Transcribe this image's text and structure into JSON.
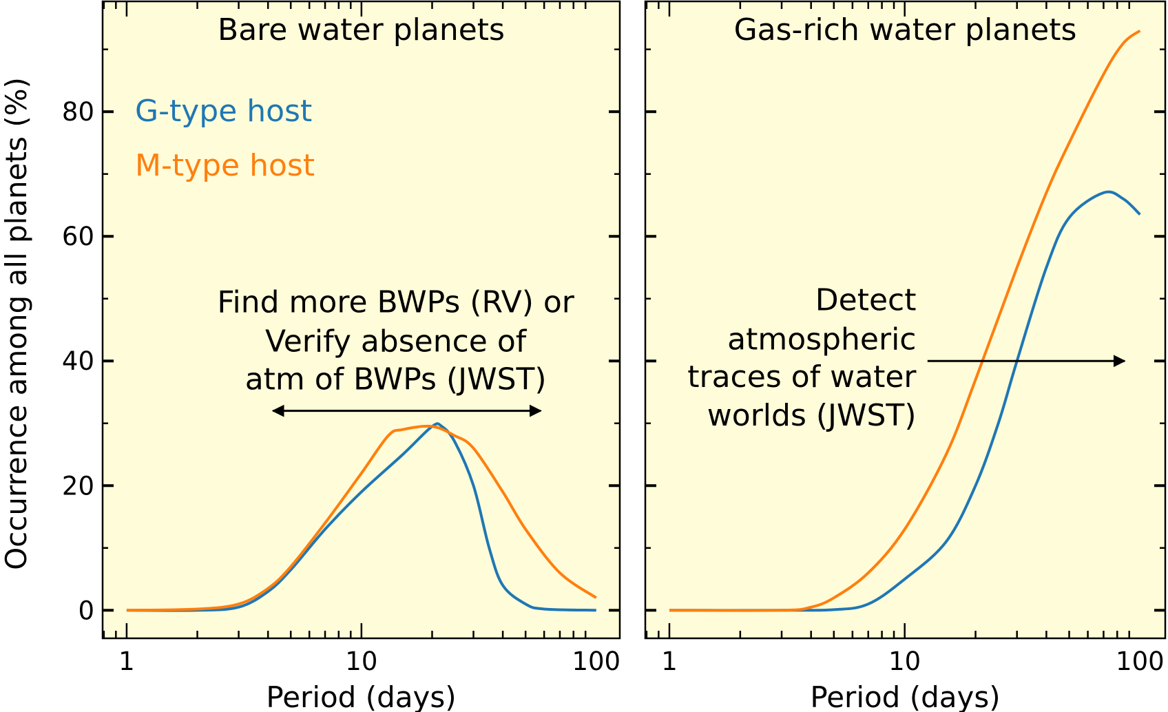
{
  "chart_data": [
    {
      "type": "line",
      "title": "Bare water planets",
      "xlabel": "Period (days)",
      "ylabel": "Occurrence among all planets (%)",
      "xscale": "log",
      "xlim": [
        0.79,
        126
      ],
      "ylim": [
        -4.5,
        97.7
      ],
      "xticks": [
        "1",
        "10",
        "100"
      ],
      "yticks": [
        "0",
        "20",
        "40",
        "60",
        "80"
      ],
      "background": "#fffcd9",
      "grid": false,
      "legend_placement": "upper-left",
      "series": [
        {
          "name": "G-type host",
          "color": "#1f77b4",
          "x": [
            1,
            2,
            3,
            4,
            5,
            7,
            10,
            15,
            20,
            22,
            25,
            30,
            35,
            40,
            50,
            60,
            100
          ],
          "y": [
            0,
            0,
            0.5,
            3,
            6.5,
            13,
            19,
            25,
            29.5,
            29.5,
            27,
            20,
            10,
            4,
            1,
            0.2,
            0
          ]
        },
        {
          "name": "M-type host",
          "color": "#ff7f0e",
          "x": [
            1,
            2,
            3,
            4,
            5,
            7,
            10,
            13,
            15,
            20,
            25,
            30,
            40,
            50,
            70,
            100
          ],
          "y": [
            0,
            0.2,
            1,
            3.5,
            7,
            14,
            22,
            28,
            29,
            29.5,
            28,
            26,
            19,
            13,
            6,
            2
          ]
        }
      ],
      "annotations": [
        {
          "lines": [
            "Find more BWPs (RV) or",
            "Verify absence of",
            "atm of BWPs (JWST)"
          ],
          "arrow": "double",
          "arrow_x": [
            4.2,
            58
          ],
          "arrow_y": 32
        }
      ]
    },
    {
      "type": "line",
      "title": "Gas-rich water planets",
      "xlabel": "Period (days)",
      "xscale": "log",
      "xlim": [
        0.79,
        128
      ],
      "ylim": [
        -4.5,
        97.7
      ],
      "xticks": [
        "1",
        "10",
        "100"
      ],
      "background": "#fffcd9",
      "grid": false,
      "series": [
        {
          "name": "G-type host",
          "color": "#1f77b4",
          "x": [
            1,
            3,
            5,
            7,
            10,
            15,
            20,
            25,
            30,
            40,
            50,
            70,
            85,
            100
          ],
          "y": [
            0,
            0,
            0.1,
            1,
            5,
            11,
            20,
            30,
            40,
            55,
            63,
            67,
            66,
            63.5
          ]
        },
        {
          "name": "M-type host",
          "color": "#ff7f0e",
          "x": [
            1,
            3,
            4,
            5,
            7,
            10,
            15,
            20,
            30,
            40,
            50,
            70,
            85,
            100
          ],
          "y": [
            0,
            0,
            0.5,
            2,
            6,
            13,
            25,
            37,
            55,
            67,
            75,
            86,
            91,
            93
          ]
        }
      ],
      "annotations": [
        {
          "lines": [
            "Detect",
            "atmospheric",
            "traces of water",
            "worlds (JWST)"
          ],
          "arrow": "right",
          "arrow_x": [
            12.5,
            86
          ],
          "arrow_y": 40
        }
      ]
    }
  ]
}
